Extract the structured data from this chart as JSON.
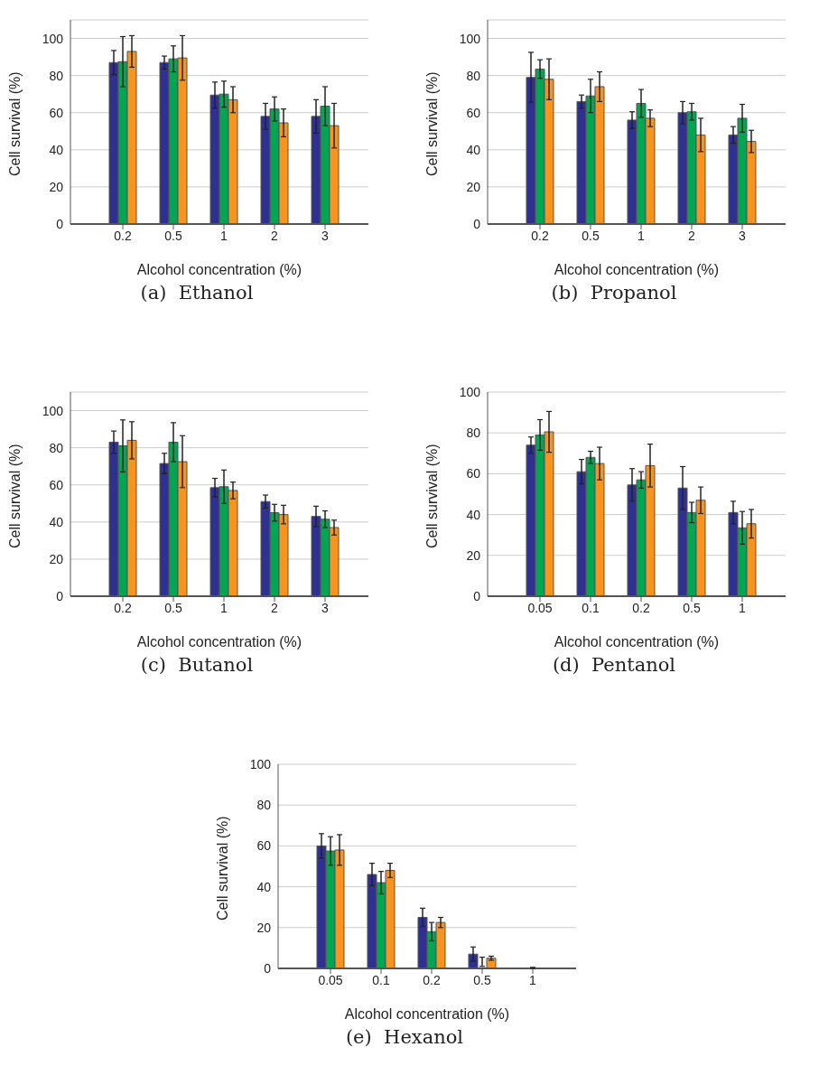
{
  "chart_data": [
    {
      "type": "bar",
      "title": "(a)  Ethanol",
      "xlabel": "Alcohol concentration (%)",
      "ylabel": "Cell survival (%)",
      "categories": [
        "0.2",
        "0.5",
        "1",
        "2",
        "3"
      ],
      "ylim": [
        0,
        110
      ],
      "yticks": [
        0,
        20,
        40,
        60,
        80,
        100
      ],
      "grid": "y",
      "series": [
        {
          "color": "#2e3192",
          "values": [
            87,
            87,
            69.5,
            58,
            58
          ],
          "errors": [
            6.5,
            3.5,
            7,
            7,
            9
          ]
        },
        {
          "color": "#00a651",
          "values": [
            87.5,
            89,
            70,
            62,
            63.5
          ],
          "errors": [
            13.5,
            7,
            7,
            6.5,
            10.5
          ]
        },
        {
          "color": "#f7941d",
          "values": [
            93,
            89.5,
            67,
            54.5,
            53
          ],
          "errors": [
            8.5,
            12,
            7,
            7.5,
            12
          ]
        }
      ]
    },
    {
      "type": "bar",
      "title": "(b)  Propanol",
      "xlabel": "Alcohol concentration (%)",
      "ylabel": "Cell survival (%)",
      "categories": [
        "0.2",
        "0.5",
        "1",
        "2",
        "3"
      ],
      "ylim": [
        0,
        110
      ],
      "yticks": [
        0,
        20,
        40,
        60,
        80,
        100
      ],
      "grid": "y",
      "series": [
        {
          "color": "#2e3192",
          "values": [
            79,
            66,
            56,
            60,
            48
          ],
          "errors": [
            13.5,
            3.5,
            4.5,
            6,
            4.5
          ]
        },
        {
          "color": "#00a651",
          "values": [
            83.5,
            69,
            65,
            60.5,
            57
          ],
          "errors": [
            5,
            9,
            7.5,
            4.5,
            7.5
          ]
        },
        {
          "color": "#f7941d",
          "values": [
            78,
            74,
            57,
            48,
            44.5
          ],
          "errors": [
            11,
            8,
            4.5,
            9,
            6
          ]
        }
      ]
    },
    {
      "type": "bar",
      "title": "(c)  Butanol",
      "xlabel": "Alcohol concentration (%)",
      "ylabel": "Cell survival (%)",
      "categories": [
        "0.2",
        "0.5",
        "1",
        "2",
        "3"
      ],
      "ylim": [
        0,
        110
      ],
      "yticks": [
        0,
        20,
        40,
        60,
        80,
        100
      ],
      "grid": "y",
      "series": [
        {
          "color": "#2e3192",
          "values": [
            83,
            71.5,
            58.5,
            51,
            43
          ],
          "errors": [
            6,
            5.5,
            5,
            3.5,
            5.5
          ]
        },
        {
          "color": "#00a651",
          "values": [
            81,
            83,
            59,
            45,
            41.5
          ],
          "errors": [
            14,
            10.5,
            9,
            4.5,
            4.5
          ]
        },
        {
          "color": "#f7941d",
          "values": [
            84,
            72.5,
            57,
            44,
            37
          ],
          "errors": [
            10,
            14,
            4.5,
            5,
            4
          ]
        }
      ]
    },
    {
      "type": "bar",
      "title": "(d)  Pentanol",
      "xlabel": "Alcohol concentration (%)",
      "ylabel": "Cell survival (%)",
      "categories": [
        "0.05",
        "0.1",
        "0.2",
        "0.5",
        "1"
      ],
      "ylim": [
        0,
        100
      ],
      "yticks": [
        0,
        20,
        40,
        60,
        80,
        100
      ],
      "grid": "y",
      "series": [
        {
          "color": "#2e3192",
          "values": [
            74,
            61,
            54.5,
            53,
            41
          ],
          "errors": [
            4,
            6,
            8,
            10.5,
            5.5
          ]
        },
        {
          "color": "#00a651",
          "values": [
            79,
            68,
            57,
            41,
            33.5
          ],
          "errors": [
            7.5,
            3,
            4,
            5,
            8
          ]
        },
        {
          "color": "#f7941d",
          "values": [
            80.5,
            65,
            64,
            47,
            35.5
          ],
          "errors": [
            10,
            8,
            10.5,
            6.5,
            7
          ]
        }
      ]
    },
    {
      "type": "bar",
      "title": "(e)  Hexanol",
      "xlabel": "Alcohol concentration (%)",
      "ylabel": "Cell survival (%)",
      "categories": [
        "0.05",
        "0.1",
        "0.2",
        "0.5",
        "1"
      ],
      "ylim": [
        0,
        100
      ],
      "yticks": [
        0,
        20,
        40,
        60,
        80,
        100
      ],
      "grid": "y",
      "series": [
        {
          "color": "#2e3192",
          "values": [
            60,
            46,
            25,
            7,
            0
          ],
          "errors": [
            6,
            5.5,
            4.5,
            3.5,
            null
          ]
        },
        {
          "color": "#00a651",
          "values": [
            57.5,
            42,
            18,
            0,
            0
          ],
          "errors": [
            7,
            5.5,
            4.5,
            [
              1,
              5.5
            ],
            [
              0,
              0.5
            ]
          ]
        },
        {
          "color": "#f7941d",
          "values": [
            58,
            48,
            22.5,
            5,
            0
          ],
          "errors": [
            7.5,
            3.5,
            2.5,
            1,
            null
          ]
        }
      ]
    }
  ]
}
